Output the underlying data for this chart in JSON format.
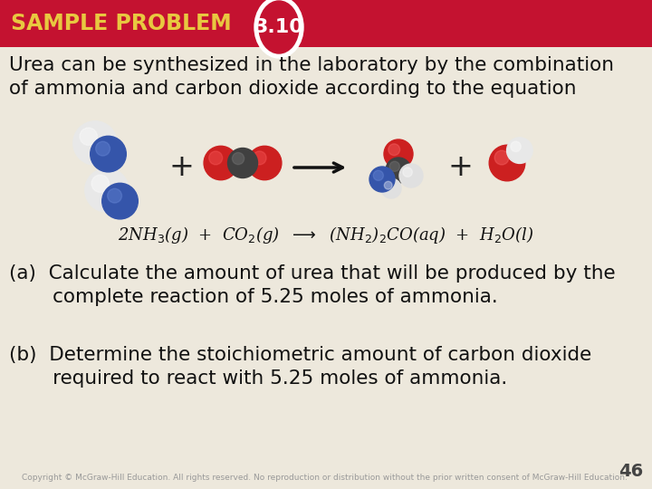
{
  "header_color": "#c41230",
  "header_text": "SAMPLE PROBLEM",
  "header_text_color": "#e8c840",
  "header_number": "3.10",
  "header_number_color": "#ffffff",
  "bg_color": "#ede8dc",
  "title_line1": "Urea can be synthesized in the laboratory by the combination",
  "title_line2": "of ammonia and carbon dioxide according to the equation",
  "title_color": "#111111",
  "title_fontsize": 15.5,
  "part_a_line1": "(a)  Calculate the amount of urea that will be produced by the",
  "part_a_line2": "       complete reaction of 5.25 moles of ammonia.",
  "part_b_line1": "(b)  Determine the stoichiometric amount of carbon dioxide",
  "part_b_line2": "       required to react with 5.25 moles of ammonia.",
  "parts_color": "#111111",
  "parts_fontsize": 15.5,
  "footer_text": "Copyright © McGraw-Hill Education. All rights reserved. No reproduction or distribution without the prior written consent of McGraw-Hill Education.",
  "footer_page": "46",
  "footer_color": "#999999",
  "footer_fontsize": 6.5
}
